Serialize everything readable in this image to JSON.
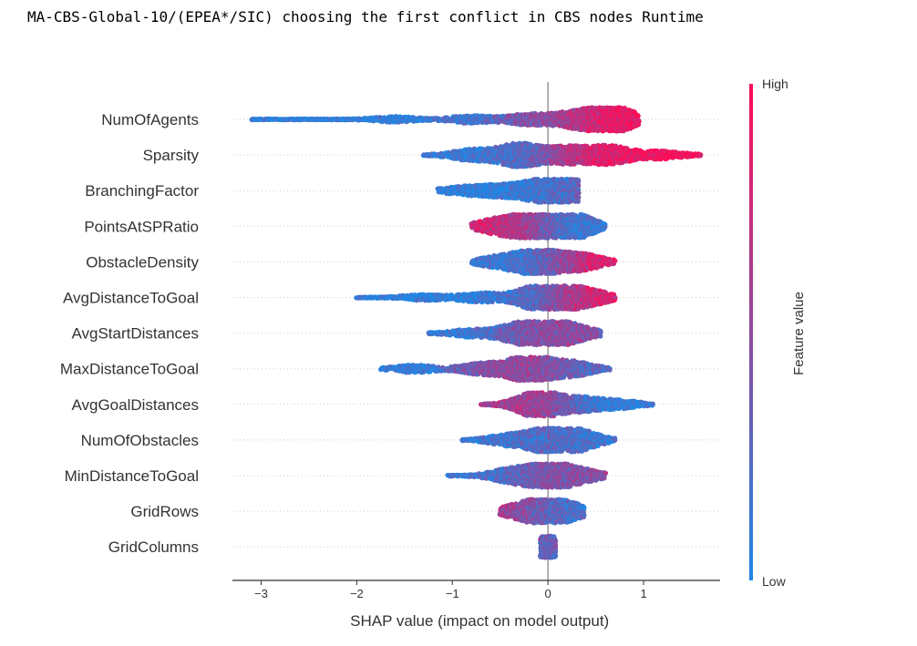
{
  "title": "MA-CBS-Global-10/(EPEA*/SIC) choosing the first conflict in CBS nodes Runtime",
  "colors": {
    "low": "#1e88e5",
    "high": "#ff0d57",
    "axis": "#333333",
    "zero_line": "#999999",
    "guide": "#cccccc"
  },
  "chart_data": {
    "type": "scatter",
    "subtype": "shap-beeswarm",
    "xlabel": "SHAP value (impact on model output)",
    "xlim": [
      -3.3,
      1.8
    ],
    "xticks": [
      -3,
      -2,
      -1,
      0,
      1
    ],
    "xtick_labels": [
      "−3",
      "−2",
      "−1",
      "0",
      "1"
    ],
    "colorbar": {
      "title": "Feature value",
      "high_label": "High",
      "low_label": "Low"
    },
    "features": [
      {
        "name": "NumOfAgents",
        "min": -3.1,
        "max": 0.95,
        "tail_start": -1.6,
        "peaks": [
          [
            0.7,
            14,
            0.95
          ],
          [
            0.3,
            9,
            0.6
          ],
          [
            -0.2,
            6,
            0.4
          ],
          [
            -0.8,
            4,
            0.15
          ],
          [
            -1.6,
            3,
            0.05
          ]
        ]
      },
      {
        "name": "Sparsity",
        "min": -1.3,
        "max": 1.6,
        "tail_start": -1.3,
        "peaks": [
          [
            0.65,
            10,
            0.9
          ],
          [
            0.2,
            9,
            0.65
          ],
          [
            -0.3,
            13,
            0.2
          ],
          [
            -0.8,
            6,
            0.1
          ],
          [
            1.2,
            4,
            1.0
          ]
        ]
      },
      {
        "name": "BranchingFactor",
        "min": -1.15,
        "max": 0.32,
        "tail_start": -1.15,
        "peaks": [
          [
            0.2,
            12,
            0.35
          ],
          [
            -0.05,
            11,
            0.05
          ],
          [
            -0.5,
            6,
            0.05
          ],
          [
            -0.9,
            4,
            0.05
          ]
        ]
      },
      {
        "name": "PointsAtSPRatio",
        "min": -0.8,
        "max": 0.6,
        "tail_start": -0.8,
        "peaks": [
          [
            0.25,
            15,
            0.1
          ],
          [
            -0.2,
            12,
            0.6
          ],
          [
            -0.55,
            7,
            0.85
          ]
        ]
      },
      {
        "name": "ObstacleDensity",
        "min": -0.8,
        "max": 0.7,
        "tail_start": -0.8,
        "peaks": [
          [
            -0.1,
            14,
            0.2
          ],
          [
            0.35,
            9,
            0.85
          ],
          [
            -0.5,
            6,
            0.1
          ]
        ]
      },
      {
        "name": "AvgDistanceToGoal",
        "min": -2.0,
        "max": 0.7,
        "tail_start": -1.6,
        "peaks": [
          [
            -0.1,
            13,
            0.15
          ],
          [
            0.2,
            10,
            0.75
          ],
          [
            0.5,
            5,
            0.9
          ],
          [
            -0.7,
            5,
            0.05
          ],
          [
            -1.3,
            3,
            0.05
          ]
        ]
      },
      {
        "name": "AvgStartDistances",
        "min": -1.25,
        "max": 0.55,
        "tail_start": -1.25,
        "peaks": [
          [
            0.0,
            13,
            0.55
          ],
          [
            -0.3,
            9,
            0.3
          ],
          [
            0.3,
            6,
            0.4
          ],
          [
            -0.8,
            4,
            0.1
          ]
        ]
      },
      {
        "name": "MaxDistanceToGoal",
        "min": -1.75,
        "max": 0.65,
        "tail_start": -1.75,
        "peaks": [
          [
            -0.2,
            15,
            0.55
          ],
          [
            0.25,
            8,
            0.25
          ],
          [
            -0.7,
            6,
            0.4
          ],
          [
            -1.4,
            4,
            0.05
          ]
        ]
      },
      {
        "name": "AvgGoalDistances",
        "min": -0.7,
        "max": 1.1,
        "tail_start": -0.7,
        "peaks": [
          [
            -0.1,
            15,
            0.6
          ],
          [
            0.35,
            7,
            0.1
          ],
          [
            0.75,
            4,
            0.05
          ]
        ]
      },
      {
        "name": "NumOfObstacles",
        "min": -0.9,
        "max": 0.7,
        "tail_start": -0.9,
        "peaks": [
          [
            0.05,
            15,
            0.3
          ],
          [
            0.35,
            8,
            0.05
          ],
          [
            -0.4,
            6,
            0.1
          ]
        ]
      },
      {
        "name": "MinDistanceToGoal",
        "min": -1.05,
        "max": 0.6,
        "tail_start": -1.05,
        "peaks": [
          [
            0.0,
            14,
            0.45
          ],
          [
            -0.4,
            7,
            0.15
          ],
          [
            0.35,
            6,
            0.45
          ]
        ]
      },
      {
        "name": "GridRows",
        "min": -0.5,
        "max": 0.38,
        "tail_start": -0.5,
        "peaks": [
          [
            0.0,
            12,
            0.3
          ],
          [
            -0.3,
            6,
            0.7
          ],
          [
            0.25,
            5,
            0.05
          ]
        ]
      },
      {
        "name": "GridColumns",
        "min": -0.08,
        "max": 0.08,
        "tail_start": -0.08,
        "peaks": [
          [
            0.0,
            12,
            0.3
          ]
        ]
      }
    ]
  }
}
